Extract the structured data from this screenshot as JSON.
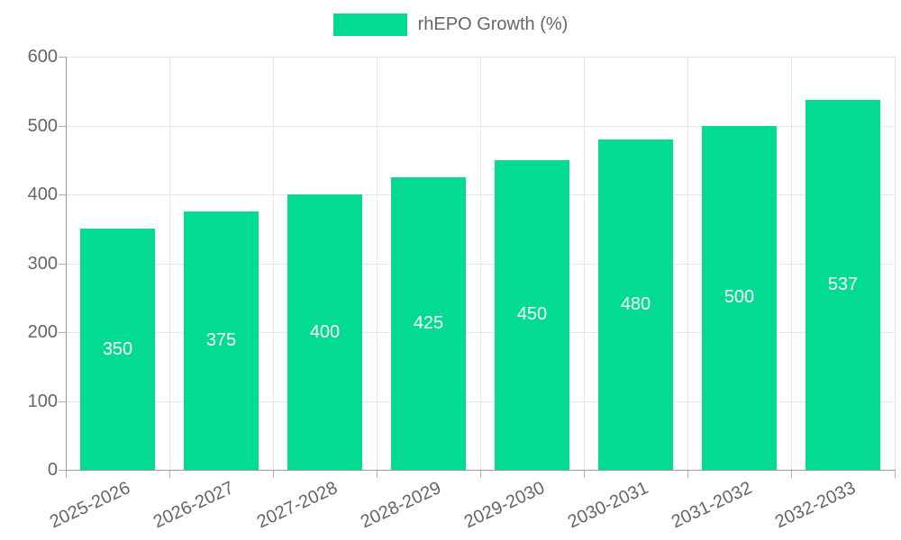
{
  "legend": {
    "label": "rhEPO Growth (%)"
  },
  "chart_data": {
    "type": "bar",
    "title": "",
    "xlabel": "",
    "ylabel": "",
    "categories": [
      "2025-2026",
      "2026-2027",
      "2027-2028",
      "2028-2029",
      "2029-2030",
      "2030-2031",
      "2031-2032",
      "2032-2033"
    ],
    "series": [
      {
        "name": "rhEPO Growth (%)",
        "values": [
          350,
          375,
          400,
          425,
          450,
          480,
          500,
          537
        ],
        "color": "#03DC90"
      }
    ],
    "value_labels": [
      350,
      375,
      400,
      425,
      450,
      480,
      500,
      537
    ],
    "value_label_position": "inside-center",
    "ylim": [
      0,
      600
    ],
    "yticks": [
      0,
      100,
      200,
      300,
      400,
      500,
      600
    ],
    "grid": true,
    "legend_position": "top-center",
    "x_tick_rotation_deg": -25,
    "colors": {
      "bar": "#03DC90",
      "grid": "#e6e6e6",
      "axis": "#999999",
      "tick_mark": "#b0b0b0",
      "tick_text": "#666666",
      "value_text": "#ffffff"
    }
  }
}
